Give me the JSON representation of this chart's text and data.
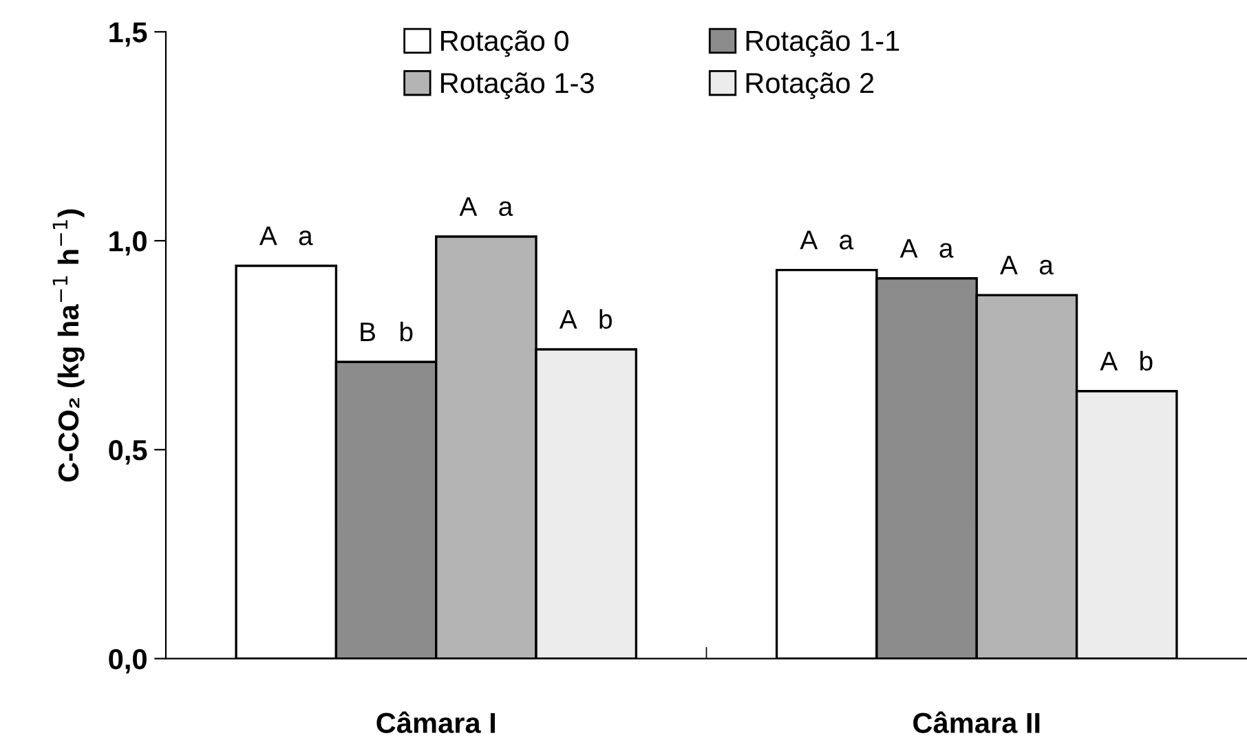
{
  "chart_data": {
    "type": "bar",
    "ylabel": "C-CO₂ (kg ha$^{−1}$ h$^{−1}$)",
    "categories": [
      "Câmara I",
      "Câmara II"
    ],
    "series": [
      {
        "name": "Rotação 0",
        "color": "#ffffff",
        "values": [
          0.94,
          0.93
        ],
        "value_labels": [
          "A   a",
          "A   a"
        ]
      },
      {
        "name": "Rotação 1-1",
        "color": "#8c8c8c",
        "values": [
          0.71,
          0.91
        ],
        "value_labels": [
          "B   b",
          "A   a"
        ]
      },
      {
        "name": "Rotação 1-3",
        "color": "#b4b4b4",
        "values": [
          1.01,
          0.87
        ],
        "value_labels": [
          "A   a",
          "A   a"
        ]
      },
      {
        "name": "Rotação 2",
        "color": "#ececec",
        "values": [
          0.74,
          0.64
        ],
        "value_labels": [
          "A   b",
          "A   b"
        ]
      }
    ],
    "ylim": [
      0,
      1.5
    ],
    "yticks": [
      {
        "value": 0,
        "label": "0,0"
      },
      {
        "value": 0.5,
        "label": "0,5"
      },
      {
        "value": 1.0,
        "label": "1,0"
      },
      {
        "value": 1.5,
        "label": "1,5"
      }
    ],
    "grid": false,
    "legend": "top"
  }
}
